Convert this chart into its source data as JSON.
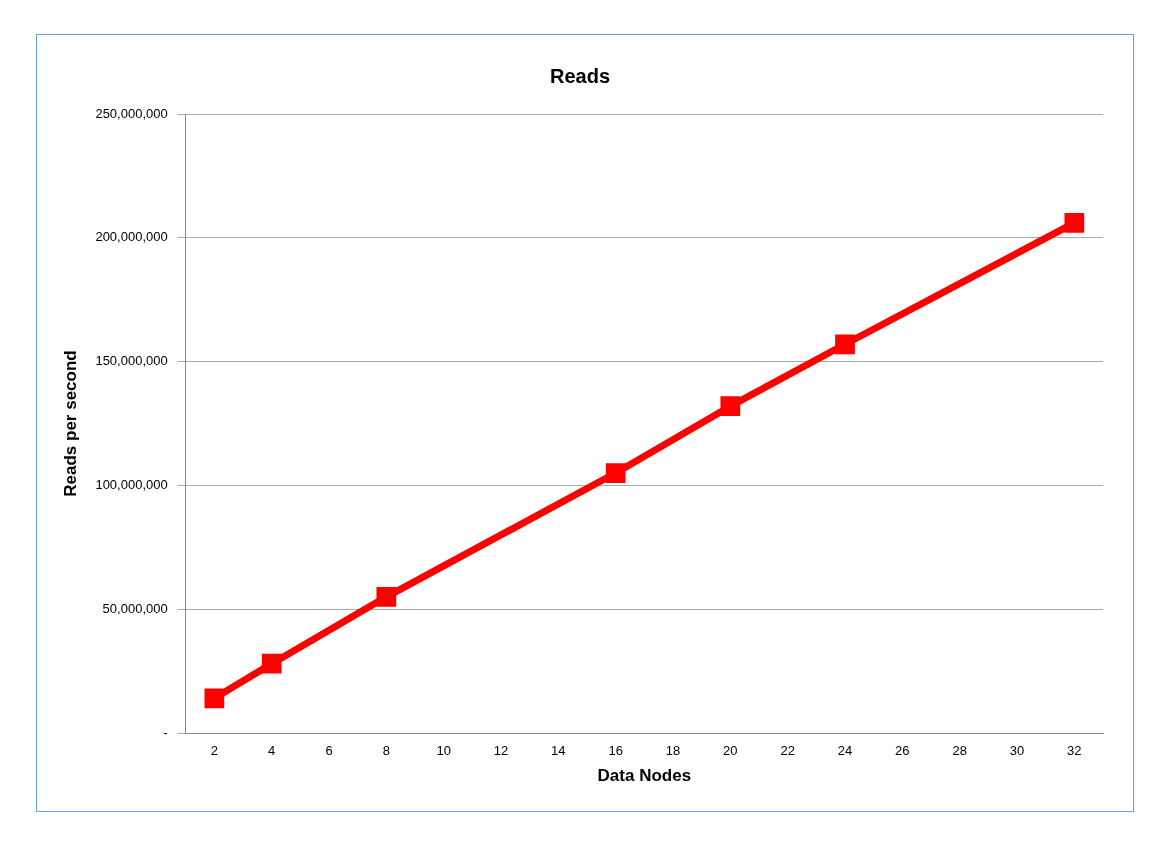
{
  "chart_data": {
    "type": "line",
    "title": "Reads",
    "xlabel": "Data Nodes",
    "ylabel": "Reads per second",
    "x": [
      2,
      4,
      8,
      16,
      20,
      24,
      32
    ],
    "series": [
      {
        "color": "#ff0000",
        "values": [
          14000000,
          28000000,
          55000000,
          105000000,
          132000000,
          157000000,
          206000000
        ]
      }
    ],
    "xlim": [
      1,
      33
    ],
    "xticks": [
      2,
      4,
      6,
      8,
      10,
      12,
      14,
      16,
      18,
      20,
      22,
      24,
      26,
      28,
      30,
      32
    ],
    "ylim": [
      0,
      250000000
    ],
    "yticks": [
      {
        "value": 0,
        "label": "-"
      },
      {
        "value": 50000000,
        "label": "50,000,000"
      },
      {
        "value": 100000000,
        "label": "100,000,000"
      },
      {
        "value": 150000000,
        "label": "150,000,000"
      },
      {
        "value": 200000000,
        "label": "200,000,000"
      },
      {
        "value": 250000000,
        "label": "250,000,000"
      }
    ],
    "grid": "y",
    "legend": false,
    "marker": "square",
    "line_style": "solid"
  }
}
